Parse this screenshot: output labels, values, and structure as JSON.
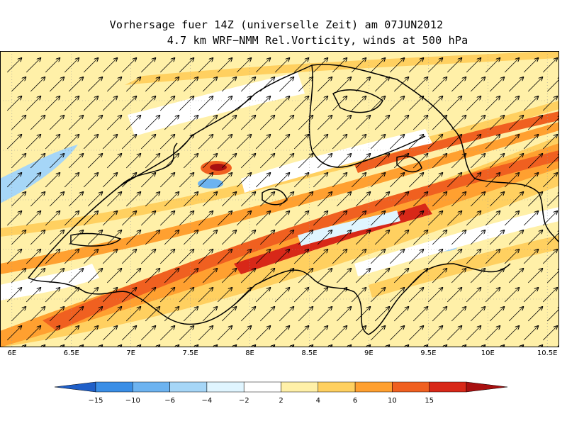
{
  "title": {
    "line1": "Vorhersage fuer 14Z (universelle Zeit) am 07JUN2012",
    "line2": "4.7 km WRF−NMM Rel.Vorticity, winds at 500 hPa"
  },
  "map": {
    "lon_labels": [
      "6E",
      "6.5E",
      "7E",
      "7.5E",
      "8E",
      "8.5E",
      "9E",
      "9.5E",
      "10E",
      "10.5E"
    ],
    "lon_values": [
      6,
      6.5,
      7,
      7.5,
      8,
      8.5,
      9,
      9.5,
      10,
      10.5
    ],
    "lon_range": [
      5.9,
      10.6
    ],
    "wind_direction": "southwest",
    "grid": true
  },
  "colorbar": {
    "labels": [
      "−15",
      "−10",
      "−6",
      "−4",
      "−2",
      "2",
      "4",
      "6",
      "10",
      "15"
    ],
    "colors": [
      "#1f5fc8",
      "#3a8ee6",
      "#6db3f0",
      "#a6d6f7",
      "#e0f5ff",
      "#ffffff",
      "#fff0a8",
      "#ffd060",
      "#ffa030",
      "#f06020",
      "#d82818",
      "#a81010"
    ]
  }
}
